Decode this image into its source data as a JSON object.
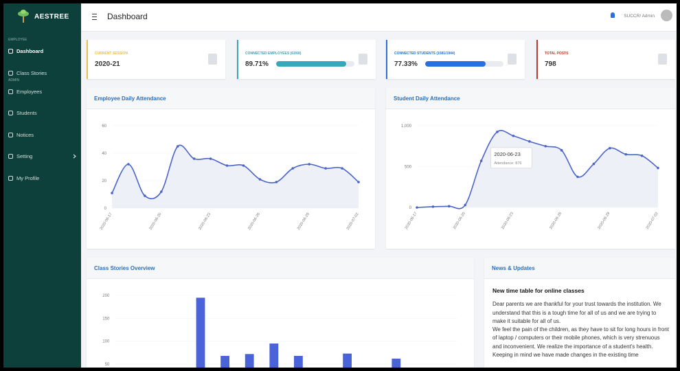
{
  "sidebar": {
    "brand": "AESTREE",
    "sections": [
      {
        "heading": "EMPLOYEE",
        "items": [
          "Dashboard",
          "Class Stories"
        ]
      },
      {
        "heading": "ADMIN",
        "items": [
          "Employees",
          "Students",
          "Notices",
          "Setting",
          "My Profile"
        ]
      }
    ]
  },
  "header": {
    "title": "Dashboard",
    "user": "SUCCR/ Admin"
  },
  "cards": [
    {
      "label": "CURRENT SESSION",
      "value": "2020-21",
      "color": "#e9c04a"
    },
    {
      "label": "CONNECTED EMPLOYEES (61/68)",
      "value": 89.71,
      "value_label": "89.71%",
      "color": "#3aa6b9"
    },
    {
      "label": "CONNECTED STUDENTS (1581/1944)",
      "value": 77.33,
      "value_label": "77.33%",
      "color": "#2a6fdb"
    },
    {
      "label": "TOTAL POSTS",
      "value": 798,
      "color": "#c0392b"
    }
  ],
  "charts": [
    {
      "type": "line",
      "title": "Employee Daily Attendance",
      "color": "#4a63c9",
      "categories": [
        "2020-06-17",
        null,
        null,
        "2020-06-20",
        null,
        null,
        "2020-06-23",
        null,
        null,
        "2020-06-26",
        null,
        null,
        "2020-06-29",
        null,
        null,
        "2020-07-02"
      ],
      "values": [
        11,
        32,
        9,
        12,
        45,
        36,
        36,
        31,
        31,
        21,
        19,
        29,
        32,
        29,
        29,
        19
      ],
      "ylim": [
        0,
        60
      ],
      "yticks": [
        0,
        20,
        40,
        60
      ]
    },
    {
      "type": "line",
      "title": "Student Daily Attendance",
      "color": "#4a63c9",
      "categories": [
        "2020-06-17",
        null,
        null,
        "2020-06-20",
        null,
        null,
        "2020-06-23",
        null,
        null,
        "2020-06-26",
        null,
        null,
        "2020-06-29",
        null,
        null,
        "2020-07-02"
      ],
      "values": [
        0,
        10,
        15,
        30,
        570,
        925,
        876,
        808,
        750,
        700,
        375,
        533,
        725,
        650,
        633,
        483
      ],
      "ylim": [
        0,
        1000
      ],
      "yticks": [
        0,
        500,
        {
          "value": 1000,
          "label": "1,000"
        }
      ],
      "tooltip": {
        "index": 6,
        "text": "Attendance: 876"
      }
    },
    {
      "type": "bar",
      "title": "Class Stories Overview",
      "color": "#4a63d9",
      "categories": [
        null,
        null,
        null,
        null,
        null,
        null,
        null,
        null,
        null,
        null,
        null,
        null,
        null,
        null
      ],
      "values": [
        null,
        null,
        null,
        195,
        68,
        72,
        95,
        68,
        null,
        73,
        null,
        62,
        null,
        null
      ],
      "ylim": [
        0,
        200
      ],
      "yticks": [
        50,
        100,
        150,
        200
      ]
    }
  ],
  "news": {
    "title": "News & Updates",
    "headline": "New time table for online classes",
    "paragraphs": [
      "Dear parents we are thankful for your trust towards the institution. We understand that this is a tough time for all of us and we are trying to make it suitable for all of us.",
      "We feel the pain of the children, as they have to sit for long hours in front of laptop / computers or their mobile phones, which is very strenuous and inconvenient. We realize the importance of a student's health. Keeping in mind we have made changes in the existing time"
    ]
  }
}
